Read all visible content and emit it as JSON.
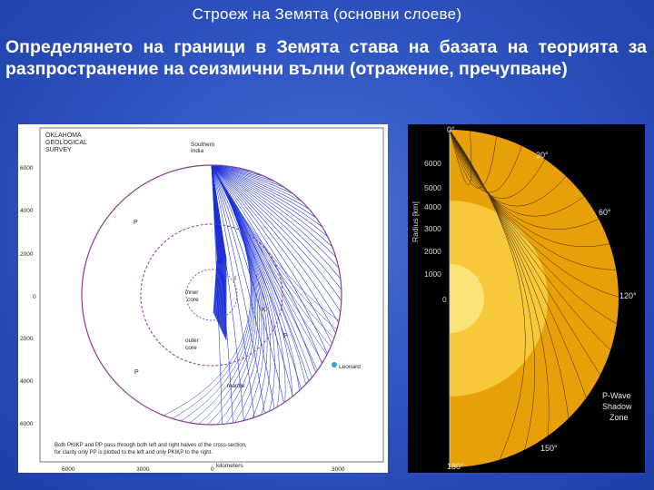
{
  "slide": {
    "title": "Строеж на Земята (основни слоеве)",
    "intro": "Определянето на граници в Земята става на базата на теорията за разпространение на сеизмични вълни (отражение, пречупване)"
  },
  "figure_left": {
    "header": [
      "OKLAHOMA",
      "GEOLOGICAL",
      "SURVEY"
    ],
    "source_label": [
      "Southern",
      "India"
    ],
    "y_ticks": [
      "6000",
      "4000",
      "2000",
      "0",
      "2000",
      "4000",
      "6000"
    ],
    "x_ticks": [
      "6000",
      "3000",
      "0",
      "3000"
    ],
    "x_axis_label": "kilometers",
    "labels": {
      "inner_core": [
        "inner",
        "core"
      ],
      "outer_core": [
        "outer",
        "core"
      ],
      "mantle": "mantle",
      "station": "Leonard",
      "p_wave": "P",
      "k_wave": "K",
      "i_wave": "I"
    },
    "caption": [
      "Both PKIKP and PP pass through both left and right halves of the cross-section,",
      "for clarity only PP is plotted to the left and only PKIKP to the right."
    ],
    "colors": {
      "rays": "#1a2fd6",
      "circles": "#8a3a8a"
    }
  },
  "figure_right": {
    "axis_label": "Radius [km]",
    "radius_ticks": [
      "6000",
      "5000",
      "4000",
      "3000",
      "2000",
      "1000",
      "0"
    ],
    "angle_labels": [
      "0°",
      "30°",
      "60°",
      "120°",
      "150°",
      "180°"
    ],
    "shadow_label": [
      "P-Wave",
      "Shadow",
      "Zone"
    ],
    "colors": {
      "mantle": "#e8a008",
      "outer_core": "#f6c83a",
      "inner_core": "#fbe27a"
    }
  }
}
